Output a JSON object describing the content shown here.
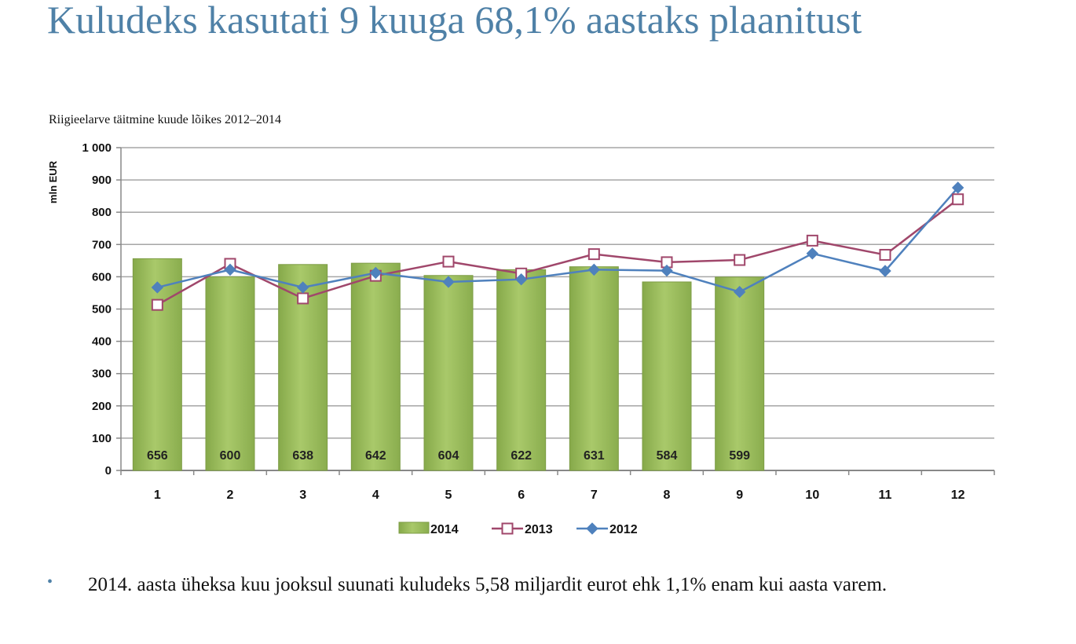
{
  "slide": {
    "title": "Kuludeks kasutati 9 kuuga 68,1% aastaks plaanitust",
    "bullet_symbol": "•",
    "bullet_text": "2014. aasta üheksa kuu jooksul suunati kuludeks 5,58 miljardit eurot ehk 1,1% enam kui aasta varem."
  },
  "chart_data": {
    "type": "bar",
    "title": "Riigieelarve täitmine kuude lõikes 2012–2014",
    "ylabel": "mln EUR",
    "xlabel": "",
    "categories": [
      "1",
      "2",
      "3",
      "4",
      "5",
      "6",
      "7",
      "8",
      "9",
      "10",
      "11",
      "12"
    ],
    "y_tick_labels": [
      "0",
      "100",
      "200",
      "300",
      "400",
      "500",
      "600",
      "700",
      "800",
      "900",
      "1 000"
    ],
    "ylim": [
      0,
      1000
    ],
    "grid": true,
    "legend_position": "bottom",
    "series": [
      {
        "name": "2014",
        "type": "bar",
        "color": "#9bbb59",
        "values": [
          656,
          600,
          638,
          642,
          604,
          622,
          631,
          584,
          599,
          null,
          null,
          null
        ],
        "data_labels": [
          "656",
          "600",
          "638",
          "642",
          "604",
          "622",
          "631",
          "584",
          "599"
        ]
      },
      {
        "name": "2013",
        "type": "line",
        "color": "#a0476b",
        "marker": "square-open",
        "values": [
          513,
          640,
          533,
          603,
          647,
          610,
          670,
          645,
          652,
          712,
          668,
          840
        ]
      },
      {
        "name": "2012",
        "type": "line",
        "color": "#4f81bd",
        "marker": "diamond",
        "values": [
          567,
          622,
          567,
          612,
          584,
          592,
          622,
          619,
          553,
          672,
          618,
          876
        ]
      }
    ]
  }
}
